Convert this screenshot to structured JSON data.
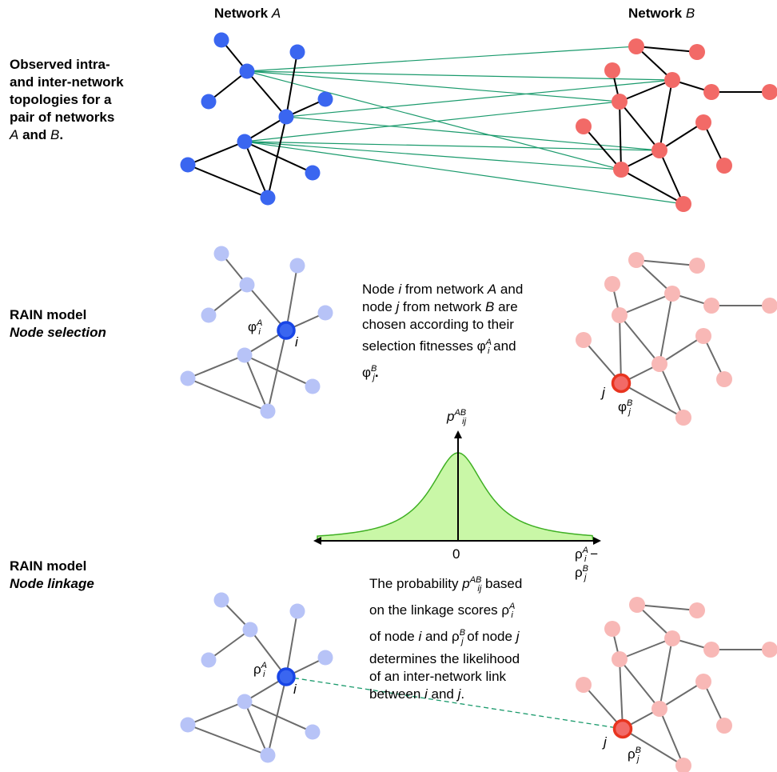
{
  "headers": {
    "net_a": "Network",
    "net_a_var": "A",
    "net_b": "Network",
    "net_b_var": "B"
  },
  "rows": {
    "observed_l1": "Observed intra-",
    "observed_l2": "and inter-network",
    "observed_l3": "topologies for a",
    "observed_l4": "pair of networks",
    "observed_l5a": "A",
    "observed_l5b": " and ",
    "observed_l5c": "B",
    "observed_l5d": ".",
    "selection_title": "RAIN model",
    "selection_sub": "Node selection",
    "linkage_title": "RAIN model",
    "linkage_sub": "Node linkage"
  },
  "selection_text": {
    "l1a": "Node ",
    "l1b": "i",
    "l1c": " from network ",
    "l1d": "A",
    "l1e": " and",
    "l2a": "node ",
    "l2b": "j",
    "l2c": " from network ",
    "l2d": "B",
    "l2e": " are",
    "l3": "chosen according to their",
    "l4a": "selection fitnesses φ",
    "l4sup": "A",
    "l4sub": "i",
    "l4b": " and",
    "l5a": "φ",
    "l5sup": "B",
    "l5sub": "j",
    "l5b": "."
  },
  "linkage_text": {
    "l1a": "The probability ",
    "l1p": "p",
    "l1sup": "AB",
    "l1sub": "ij",
    "l1b": " based",
    "l2a": "on the linkage scores ρ",
    "l2sup": "A",
    "l2sub": "i",
    "l3a": "of node ",
    "l3b": "i",
    "l3c": " and ρ",
    "l3sup": "B",
    "l3sub": "j",
    "l3d": " of node ",
    "l3e": "j",
    "l4": "determines the likelihood",
    "l5": "of an inter-network link",
    "l6a": "between ",
    "l6b": "i",
    "l6c": " and ",
    "l6d": "j",
    "l6e": "."
  },
  "node_labels": {
    "i": "i",
    "j": "j",
    "phi_a": "φ",
    "phi_a_sup": "A",
    "phi_a_sub": "i",
    "phi_b": "φ",
    "phi_b_sup": "B",
    "phi_b_sub": "j",
    "rho_a": "ρ",
    "rho_a_sup": "A",
    "rho_a_sub": "i",
    "rho_b": "ρ",
    "rho_b_sup": "B",
    "rho_b_sub": "j"
  },
  "plot": {
    "y_label": "p",
    "y_sup": "AB",
    "y_sub": "ij",
    "x_zero": "0",
    "x_label_rho1": "ρ",
    "x_label_sup1": "A",
    "x_label_sub1": "i",
    "x_label_minus": " − ",
    "x_label_rho2": "ρ",
    "x_label_sup2": "B",
    "x_label_sub2": "j"
  },
  "colors": {
    "node_a": "#3a66f0",
    "node_b": "#f26a67",
    "node_a_light": "#b7c3f7",
    "node_b_light": "#f8b8b6",
    "node_a_sel": "#1845e6",
    "node_b_sel": "#e8341f",
    "inter_link": "#1a9a6c",
    "curve_fill": "#c9f7a7",
    "curve_stroke": "#3fb023"
  }
}
